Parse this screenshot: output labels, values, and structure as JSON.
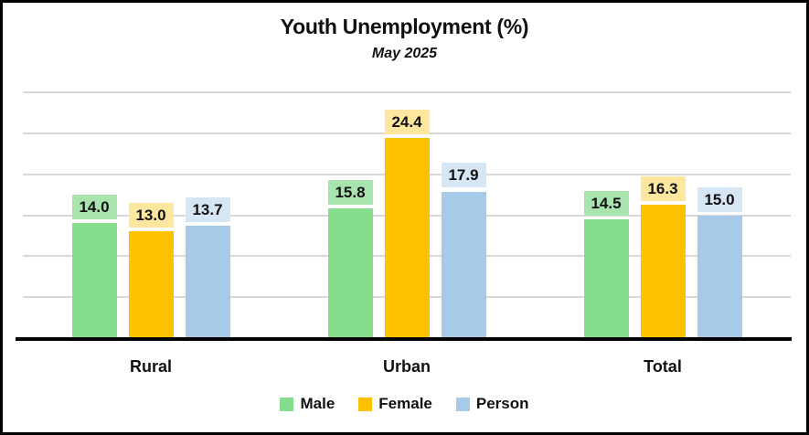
{
  "chart_data": {
    "type": "bar",
    "title": "Youth Unemployment (%)",
    "subtitle": "May 2025",
    "categories": [
      "Rural",
      "Urban",
      "Total"
    ],
    "series": [
      {
        "name": "Male",
        "color": "#85DE8D",
        "label_bg": "#A9E3AE",
        "values": [
          14.0,
          15.8,
          14.5
        ]
      },
      {
        "name": "Female",
        "color": "#FFC000",
        "label_bg": "#FFE79F",
        "values": [
          13.0,
          24.4,
          16.3
        ]
      },
      {
        "name": "Person",
        "color": "#A7CAE9",
        "label_bg": "#D7E6F5",
        "values": [
          13.7,
          17.9,
          15.0
        ]
      }
    ],
    "ylim": [
      0,
      30
    ],
    "grid": true,
    "grid_step": 5,
    "grid_color": "#D9D9D9",
    "axis_color": "#000000",
    "background_color": "#FFFFFF",
    "border_color": "#000000",
    "legend_position": "bottom",
    "value_labels": true,
    "value_decimals": 1
  }
}
